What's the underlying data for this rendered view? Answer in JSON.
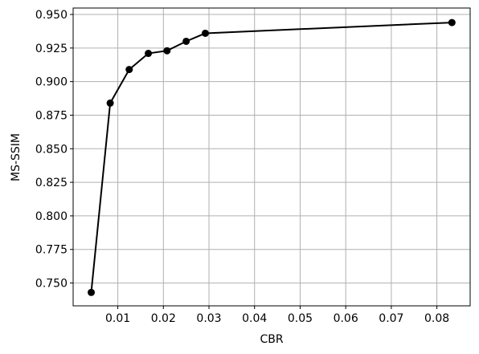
{
  "chart_data": {
    "type": "line",
    "xlabel": "CBR",
    "ylabel": "MS-SSIM",
    "x": [
      0.00417,
      0.00833,
      0.0125,
      0.0167,
      0.0208,
      0.025,
      0.0292,
      0.0833
    ],
    "series": [
      {
        "color": "#000000",
        "values": [
          0.743,
          0.884,
          0.909,
          0.921,
          0.923,
          0.93,
          0.936,
          0.944
        ]
      }
    ],
    "xlim": [
      0.0002,
      0.0873
    ],
    "ylim": [
      0.733,
      0.9548
    ],
    "xticks": [
      0.01,
      0.02,
      0.03,
      0.04,
      0.05,
      0.06,
      0.07,
      0.08
    ],
    "yticks": [
      {
        "value": 0.75,
        "label": "0.750"
      },
      {
        "value": 0.775,
        "label": "0.775"
      },
      {
        "value": 0.8,
        "label": "0.800"
      },
      {
        "value": 0.825,
        "label": "0.825"
      },
      {
        "value": 0.85,
        "label": "0.850"
      },
      {
        "value": 0.875,
        "label": "0.875"
      },
      {
        "value": 0.9,
        "label": "0.900"
      },
      {
        "value": 0.925,
        "label": "0.925"
      },
      {
        "value": 0.95,
        "label": "0.950"
      }
    ],
    "grid": true
  }
}
